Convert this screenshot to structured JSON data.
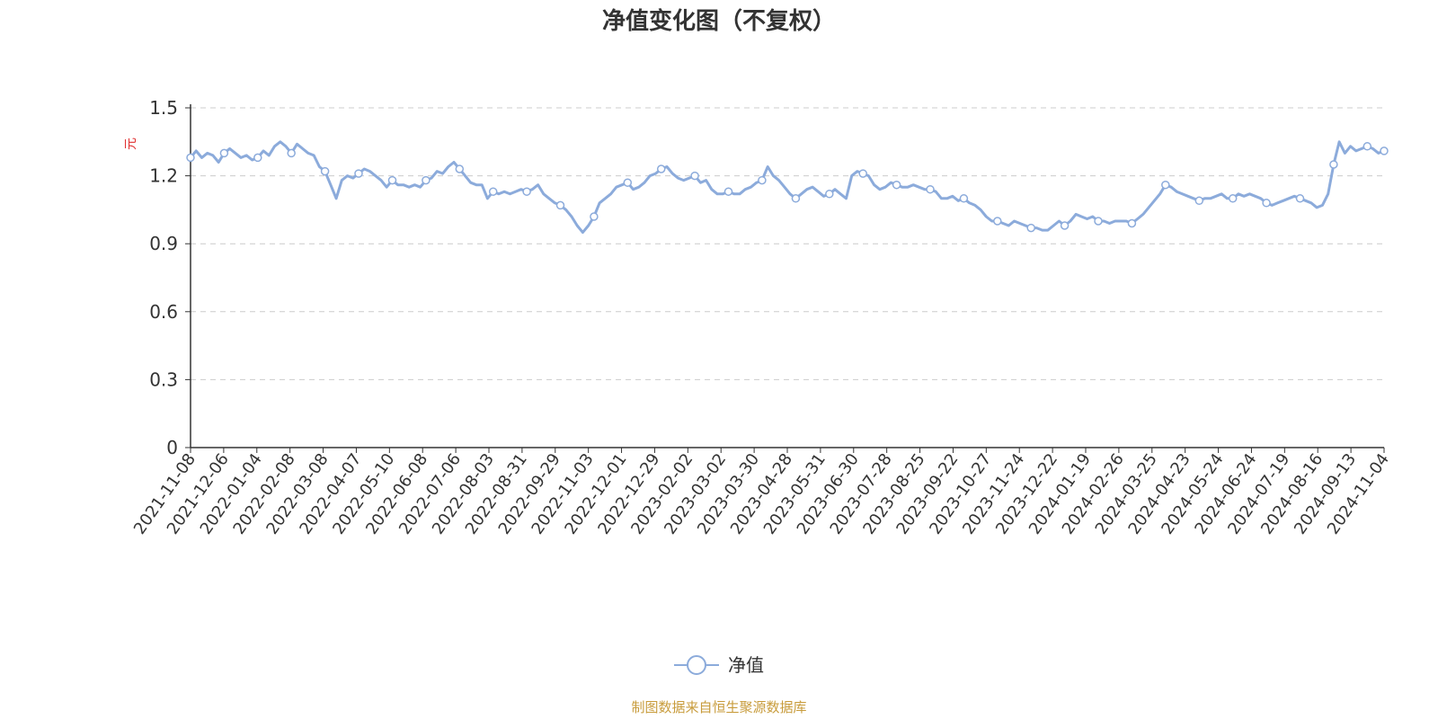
{
  "chart_data": {
    "type": "line",
    "title": "净值变化图（不复权）",
    "ylabel": "元",
    "ylim": [
      0,
      1.5
    ],
    "yticks": [
      "0",
      "0.3",
      "0.6",
      "0.9",
      "1.2",
      "1.5"
    ],
    "grid": true,
    "legend_position": "bottom-center",
    "x_tick_labels": [
      "2021-11-08",
      "2021-12-06",
      "2022-01-04",
      "2022-02-08",
      "2022-03-08",
      "2022-04-07",
      "2022-05-10",
      "2022-06-08",
      "2022-07-06",
      "2022-08-03",
      "2022-08-31",
      "2022-09-29",
      "2022-11-03",
      "2022-12-01",
      "2022-12-29",
      "2023-02-02",
      "2023-03-02",
      "2023-03-30",
      "2023-04-28",
      "2023-05-31",
      "2023-06-30",
      "2023-07-28",
      "2023-08-25",
      "2023-09-22",
      "2023-10-27",
      "2023-11-24",
      "2023-12-22",
      "2024-01-19",
      "2024-02-26",
      "2024-03-25",
      "2024-04-23",
      "2024-05-24",
      "2024-06-24",
      "2024-07-19",
      "2024-08-16",
      "2024-09-13",
      "2024-11-04"
    ],
    "series": [
      {
        "name": "净值",
        "color": "#8cabdb",
        "values": [
          1.28,
          1.31,
          1.28,
          1.3,
          1.29,
          1.26,
          1.3,
          1.32,
          1.3,
          1.28,
          1.29,
          1.27,
          1.28,
          1.31,
          1.29,
          1.33,
          1.35,
          1.33,
          1.3,
          1.34,
          1.32,
          1.3,
          1.29,
          1.24,
          1.22,
          1.16,
          1.1,
          1.18,
          1.2,
          1.19,
          1.21,
          1.23,
          1.22,
          1.2,
          1.18,
          1.15,
          1.18,
          1.16,
          1.16,
          1.15,
          1.16,
          1.15,
          1.18,
          1.19,
          1.22,
          1.21,
          1.24,
          1.26,
          1.23,
          1.2,
          1.17,
          1.16,
          1.16,
          1.1,
          1.13,
          1.12,
          1.13,
          1.12,
          1.13,
          1.14,
          1.13,
          1.14,
          1.16,
          1.12,
          1.1,
          1.08,
          1.07,
          1.05,
          1.02,
          0.98,
          0.95,
          0.98,
          1.02,
          1.08,
          1.1,
          1.12,
          1.15,
          1.16,
          1.17,
          1.14,
          1.15,
          1.17,
          1.2,
          1.21,
          1.23,
          1.24,
          1.21,
          1.19,
          1.18,
          1.19,
          1.2,
          1.17,
          1.18,
          1.14,
          1.12,
          1.12,
          1.13,
          1.12,
          1.12,
          1.14,
          1.15,
          1.17,
          1.18,
          1.24,
          1.2,
          1.18,
          1.15,
          1.12,
          1.1,
          1.12,
          1.14,
          1.15,
          1.13,
          1.11,
          1.12,
          1.14,
          1.12,
          1.1,
          1.2,
          1.22,
          1.21,
          1.2,
          1.16,
          1.14,
          1.15,
          1.17,
          1.16,
          1.15,
          1.15,
          1.16,
          1.15,
          1.14,
          1.14,
          1.13,
          1.1,
          1.1,
          1.11,
          1.09,
          1.1,
          1.08,
          1.07,
          1.05,
          1.02,
          1.0,
          1.0,
          0.99,
          0.98,
          1.0,
          0.99,
          0.98,
          0.97,
          0.97,
          0.96,
          0.96,
          0.98,
          1.0,
          0.98,
          1.0,
          1.03,
          1.02,
          1.01,
          1.02,
          1.0,
          1.0,
          0.99,
          1.0,
          1.0,
          1.0,
          0.99,
          1.01,
          1.03,
          1.06,
          1.09,
          1.12,
          1.16,
          1.15,
          1.13,
          1.12,
          1.11,
          1.1,
          1.09,
          1.1,
          1.1,
          1.11,
          1.12,
          1.1,
          1.1,
          1.12,
          1.11,
          1.12,
          1.11,
          1.1,
          1.08,
          1.07,
          1.08,
          1.09,
          1.1,
          1.11,
          1.1,
          1.09,
          1.08,
          1.06,
          1.07,
          1.12,
          1.25,
          1.35,
          1.3,
          1.33,
          1.31,
          1.32,
          1.33,
          1.32,
          1.3,
          1.31
        ]
      }
    ]
  },
  "legend": {
    "label": "净值"
  },
  "source": {
    "text": "制图数据来自恒生聚源数据库",
    "color": "#c89c3c"
  },
  "colors": {
    "axis": "#333333",
    "grid": "#cccccc",
    "unit": "#e03030",
    "line": "#8cabdb"
  }
}
